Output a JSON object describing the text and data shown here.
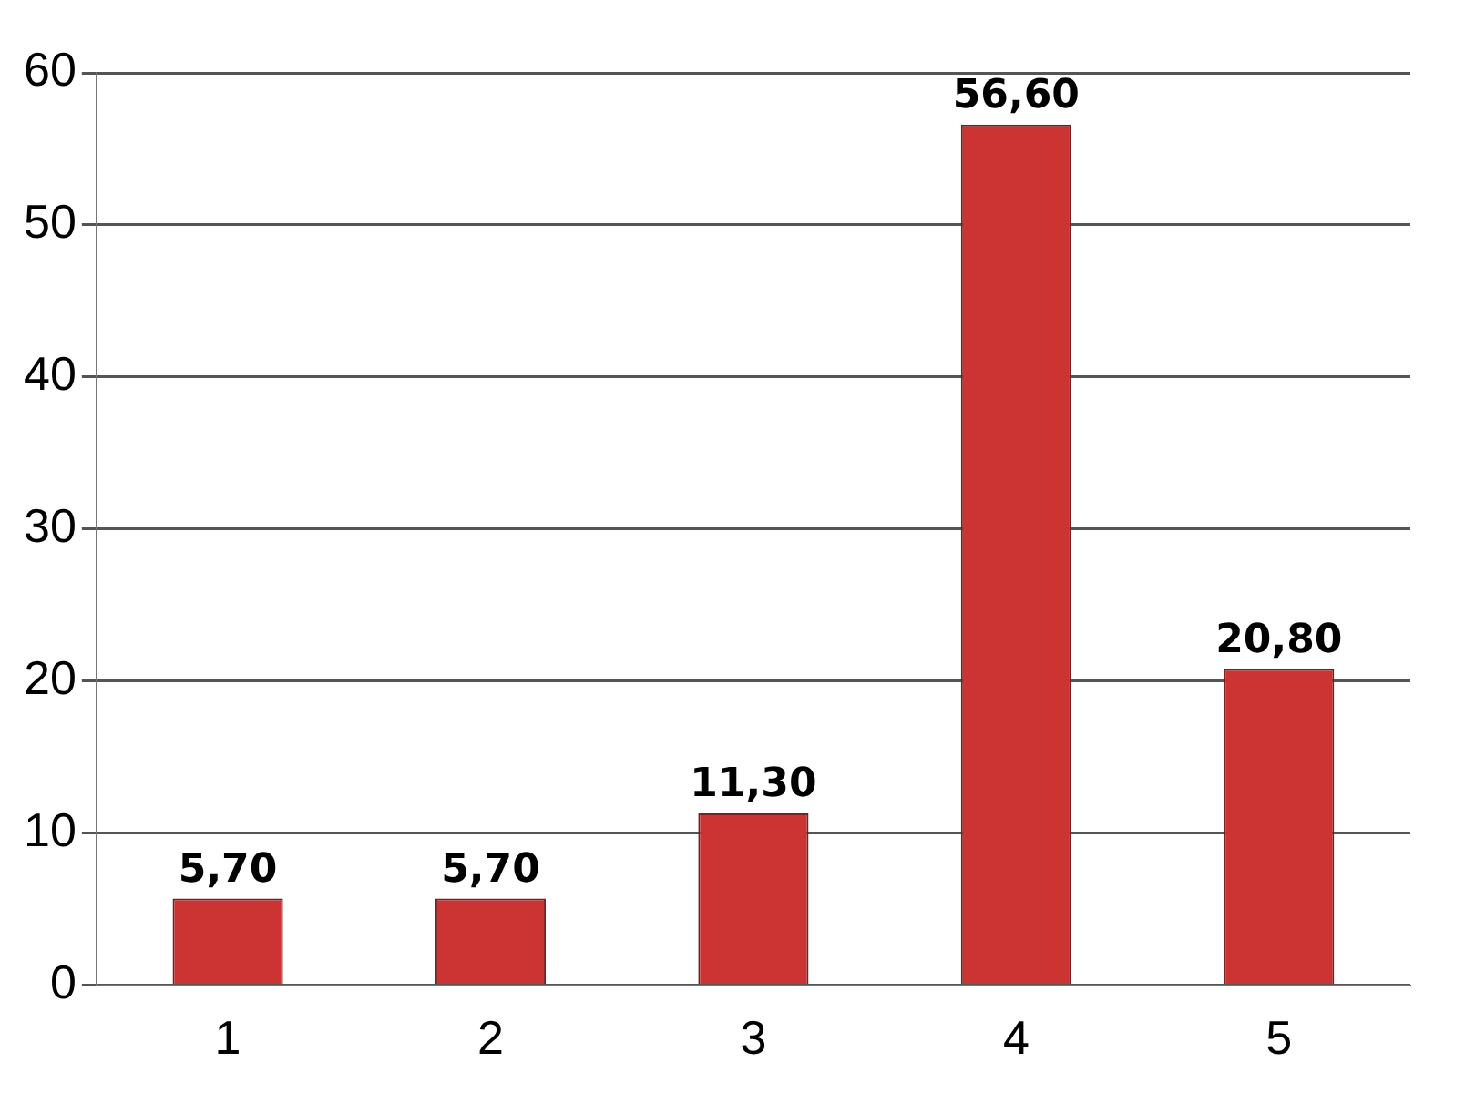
{
  "chart_data": {
    "type": "bar",
    "categories": [
      "1",
      "2",
      "3",
      "4",
      "5"
    ],
    "values": [
      5.7,
      5.7,
      11.3,
      56.6,
      20.8
    ],
    "value_labels": [
      "5,70",
      "5,70",
      "11,30",
      "56,60",
      "20,80"
    ],
    "color": "#cc3333",
    "ylim": [
      0,
      60
    ],
    "yticks": [
      0,
      10,
      20,
      30,
      40,
      50,
      60
    ],
    "grid": "y"
  }
}
